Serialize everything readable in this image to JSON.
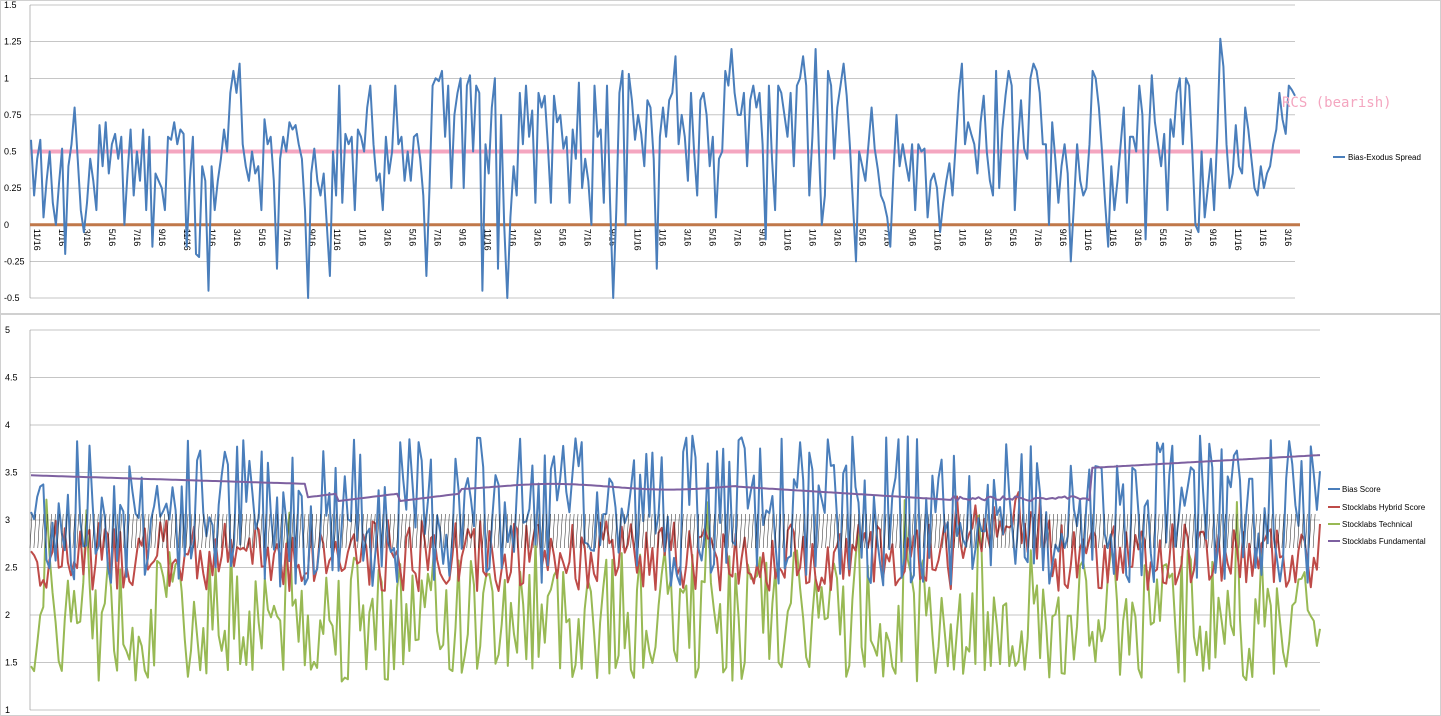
{
  "chart_data": [
    {
      "type": "line",
      "yticks": [
        "1.5",
        "1.25",
        "1",
        "0.75",
        "0.5",
        "0.25",
        "0",
        "-0.25",
        "-0.5"
      ],
      "ylim": [
        -0.5,
        1.5
      ],
      "xtick_labels": [
        "11/16",
        "1/16",
        "3/16",
        "5/16",
        "7/16",
        "9/16",
        "11/16",
        "1/16",
        "3/16",
        "5/16",
        "7/16",
        "9/16",
        "11/16",
        "1/16",
        "3/16",
        "5/16",
        "7/16",
        "9/16",
        "11/16",
        "1/16",
        "3/16",
        "5/16",
        "7/16",
        "9/16",
        "11/16",
        "1/16",
        "3/16",
        "5/16",
        "7/16",
        "9/16",
        "11/16",
        "1/16",
        "3/16",
        "5/16",
        "7/16",
        "9/16",
        "11/16",
        "1/16",
        "3/16",
        "5/16",
        "7/16",
        "9/16",
        "11/16",
        "1/16",
        "3/16",
        "5/16",
        "7/16",
        "9/16",
        "11/16",
        "1/16",
        "3/16"
      ],
      "grid": true,
      "legend_position": "right",
      "annotation": "RCS (bearish)",
      "series": [
        {
          "name": "Bias-Exodus Spread",
          "color": "#4a7ebb",
          "values": [
            0.58,
            0.2,
            0.45,
            0.58,
            0.05,
            0.3,
            0.5,
            0.15,
            0.0,
            0.28,
            0.52,
            -0.2,
            0.4,
            0.55,
            0.8,
            0.45,
            0.1,
            -0.05,
            0.15,
            0.45,
            0.3,
            0.1,
            0.68,
            0.4,
            0.7,
            0.35,
            0.55,
            0.62,
            0.45,
            0.6,
            0.0,
            0.35,
            0.65,
            0.2,
            0.5,
            0.3,
            0.65,
            0.1,
            0.6,
            -0.15,
            0.35,
            0.3,
            0.25,
            0.1,
            0.6,
            0.58,
            0.7,
            0.55,
            0.65,
            0.62,
            -0.15,
            0.3,
            0.6,
            -0.2,
            -0.22,
            0.4,
            0.3,
            -0.45,
            0.4,
            0.1,
            0.3,
            0.45,
            0.65,
            0.5,
            0.9,
            1.05,
            0.9,
            1.1,
            0.55,
            0.4,
            0.3,
            0.5,
            0.35,
            0.4,
            0.1,
            0.72,
            0.55,
            0.6,
            0.3,
            -0.3,
            0.45,
            0.6,
            0.5,
            0.7,
            0.65,
            0.68,
            0.55,
            0.45,
            0.1,
            -0.5,
            0.35,
            0.52,
            0.3,
            0.2,
            0.35,
            0.0,
            -0.35,
            0.5,
            0.2,
            0.95,
            0.15,
            0.62,
            0.55,
            0.6,
            0.1,
            0.65,
            0.6,
            0.5,
            0.8,
            0.95,
            0.55,
            0.3,
            0.35,
            0.1,
            0.6,
            0.35,
            0.5,
            0.95,
            0.55,
            0.6,
            0.3,
            0.5,
            0.3,
            0.6,
            0.62,
            0.45,
            0.2,
            -0.35,
            0.25,
            0.95,
            1.0,
            0.98,
            1.05,
            0.6,
            0.95,
            0.25,
            0.75,
            0.9,
            1.0,
            0.25,
            0.95,
            1.02,
            0.5,
            0.95,
            0.9,
            -0.45,
            0.55,
            0.35,
            0.8,
            1.0,
            -0.3,
            0.75,
            0.0,
            -0.5,
            0.05,
            0.4,
            0.2,
            0.9,
            0.55,
            0.95,
            0.6,
            0.78,
            0.15,
            0.9,
            0.8,
            0.88,
            0.55,
            0.15,
            0.88,
            0.7,
            0.75,
            0.52,
            0.6,
            0.15,
            0.65,
            0.45,
            0.97,
            0.25,
            0.45,
            0.3,
            0.0,
            0.95,
            0.6,
            0.65,
            0.15,
            0.95,
            0.15,
            -0.5,
            0.1,
            0.9,
            1.05,
            0.0,
            1.03,
            0.85,
            0.58,
            0.75,
            0.62,
            0.4,
            0.85,
            0.8,
            0.45,
            -0.3,
            0.6,
            0.8,
            0.6,
            0.85,
            0.9,
            1.15,
            0.55,
            0.75,
            0.6,
            0.3,
            0.9,
            0.5,
            0.2,
            0.85,
            0.9,
            0.75,
            0.4,
            0.6,
            0.05,
            0.45,
            0.5,
            1.05,
            0.95,
            1.2,
            0.9,
            0.75,
            0.75,
            0.9,
            0.4,
            0.85,
            0.95,
            0.8,
            0.9,
            0.55,
            -0.1,
            0.95,
            0.45,
            0.1,
            0.95,
            0.9,
            0.75,
            0.6,
            0.9,
            0.4,
            0.95,
            1.0,
            1.15,
            0.95,
            0.2,
            0.6,
            1.2,
            0.55,
            0.0,
            0.2,
            1.05,
            0.95,
            0.45,
            0.8,
            0.95,
            1.1,
            0.88,
            0.55,
            0.15,
            -0.25,
            0.5,
            0.4,
            0.3,
            0.55,
            0.8,
            0.52,
            0.38,
            0.2,
            0.15,
            0.05,
            -0.15,
            0.35,
            0.75,
            0.4,
            0.55,
            0.42,
            0.3,
            0.55,
            0.1,
            0.55,
            0.5,
            0.52,
            0.05,
            0.3,
            0.35,
            0.25,
            -0.05,
            0.15,
            0.3,
            0.42,
            0.2,
            0.55,
            0.9,
            1.1,
            0.55,
            0.7,
            0.62,
            0.55,
            0.35,
            0.7,
            0.88,
            0.5,
            0.3,
            0.2,
            1.05,
            0.25,
            0.65,
            0.88,
            1.05,
            0.95,
            0.1,
            0.55,
            0.85,
            0.52,
            0.45,
            1.0,
            1.1,
            1.05,
            0.9,
            0.55,
            0.55,
            0.0,
            0.7,
            0.45,
            0.15,
            0.4,
            0.55,
            0.35,
            -0.25,
            0.15,
            0.55,
            0.3,
            0.2,
            0.25,
            0.55,
            1.05,
            1.0,
            0.8,
            0.5,
            0.15,
            -0.15,
            0.4,
            0.1,
            0.3,
            0.55,
            0.8,
            0.15,
            0.6,
            0.6,
            0.5,
            0.95,
            0.75,
            -0.1,
            0.6,
            1.02,
            0.7,
            0.55,
            0.4,
            0.62,
            0.1,
            0.72,
            0.6,
            0.9,
            1.0,
            0.55,
            1.0,
            0.95,
            0.5,
            0.0,
            -0.05,
            0.5,
            0.05,
            0.25,
            0.45,
            0.1,
            0.6,
            1.27,
            1.08,
            0.55,
            0.25,
            0.35,
            0.68,
            0.4,
            0.35,
            0.8,
            0.65,
            0.45,
            0.25,
            0.2,
            0.4,
            0.25,
            0.35,
            0.4,
            0.55,
            0.65,
            0.9,
            0.72,
            0.62,
            0.95,
            0.92,
            0.88
          ]
        },
        {
          "name": "",
          "color": "#f4a6c0",
          "values": [
            0.5
          ]
        },
        {
          "name": "",
          "color": "#c0784a",
          "values": [
            0
          ]
        }
      ]
    },
    {
      "type": "line",
      "yticks": [
        "5",
        "4.5",
        "4",
        "3.5",
        "3",
        "2.5",
        "2",
        "1.5",
        "1"
      ],
      "ylim": [
        1,
        5
      ],
      "grid": true,
      "legend_position": "right",
      "series": [
        {
          "name": "Bias Score",
          "color": "#4a7ebb"
        },
        {
          "name": "Stocklabs Hybrid Score",
          "color": "#be4b48"
        },
        {
          "name": "Stocklabs Technical",
          "color": "#98b954"
        },
        {
          "name": "Stocklabs Fundamental",
          "color": "#7d60a0"
        }
      ]
    }
  ]
}
